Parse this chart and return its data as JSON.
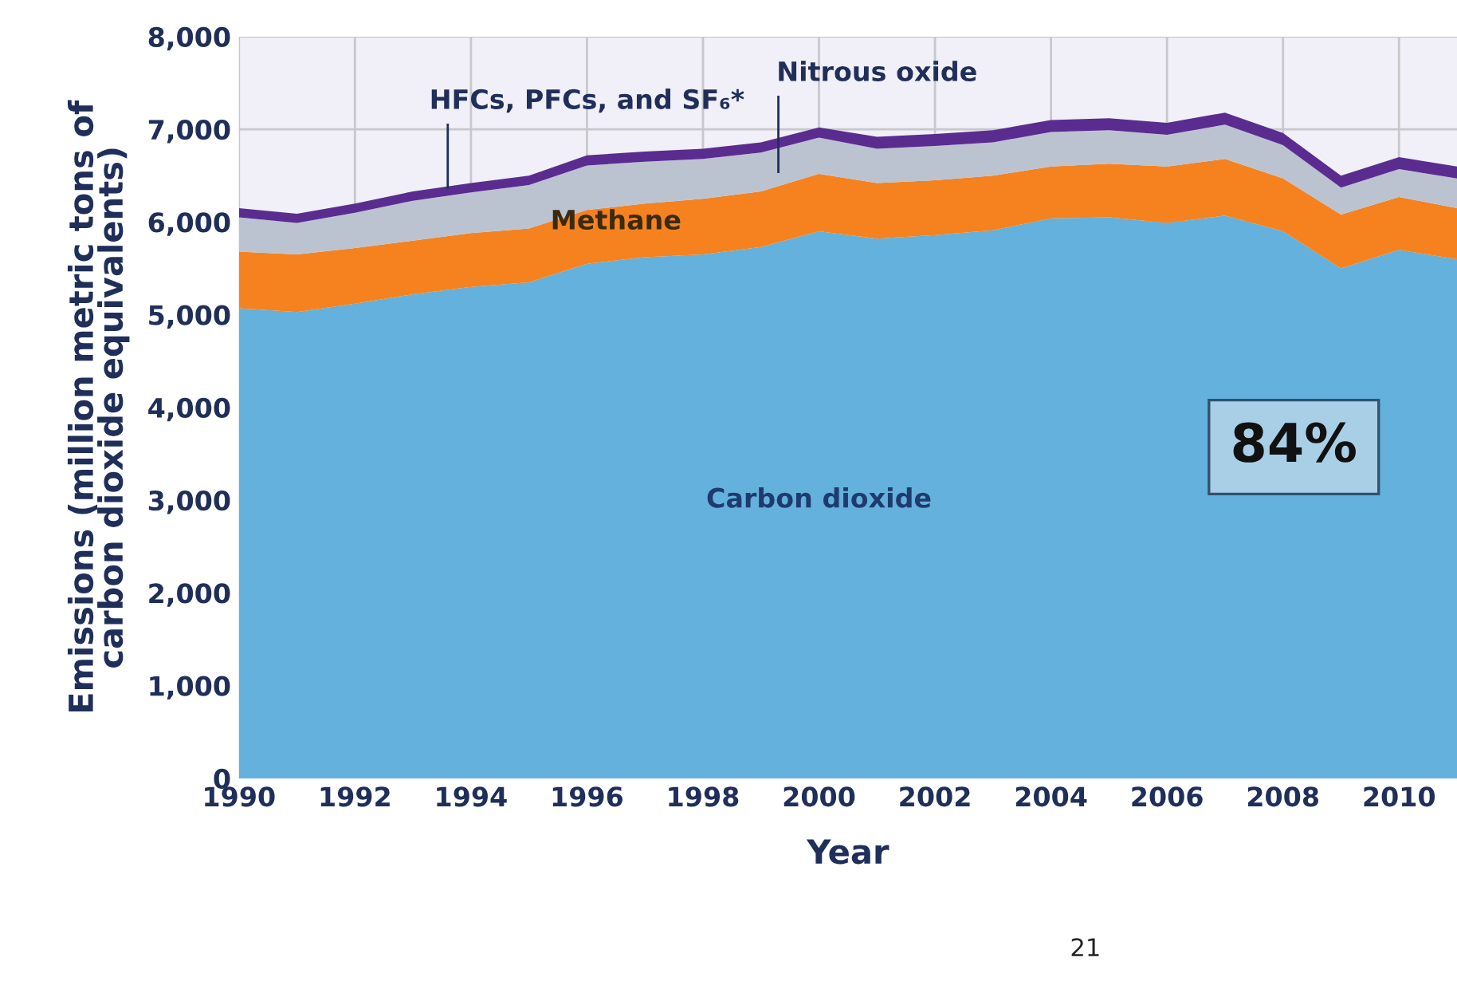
{
  "chart_data": {
    "type": "area",
    "stacked": true,
    "xlabel": "Year",
    "ylabel": "Emissions (million metric tons of\ncarbon dioxide equivalents)",
    "x": [
      1990,
      1991,
      1992,
      1993,
      1994,
      1995,
      1996,
      1997,
      1998,
      1999,
      2000,
      2001,
      2002,
      2003,
      2004,
      2005,
      2006,
      2007,
      2008,
      2009,
      2010,
      2011
    ],
    "series": [
      {
        "name": "Carbon dioxide",
        "color": "#63b1dc",
        "values": [
          5070,
          5030,
          5120,
          5220,
          5300,
          5350,
          5550,
          5620,
          5650,
          5730,
          5900,
          5820,
          5860,
          5910,
          6040,
          6050,
          5990,
          6070,
          5900,
          5500,
          5700,
          5600
        ]
      },
      {
        "name": "Methane",
        "color": "#f5821f",
        "values": [
          610,
          620,
          600,
          580,
          580,
          580,
          580,
          580,
          600,
          600,
          620,
          600,
          590,
          590,
          560,
          580,
          610,
          610,
          570,
          580,
          570,
          550
        ]
      },
      {
        "name": "Nitrous oxide",
        "color": "#bcc3d0",
        "values": [
          370,
          340,
          380,
          430,
          440,
          470,
          480,
          450,
          430,
          420,
          390,
          370,
          370,
          360,
          370,
          360,
          340,
          370,
          360,
          290,
          300,
          320
        ]
      },
      {
        "name": "HFCs, PFCs, and SF₆*",
        "color": "#5b2c8f",
        "values": [
          100,
          100,
          100,
          100,
          100,
          100,
          110,
          110,
          110,
          110,
          110,
          130,
          130,
          130,
          130,
          130,
          130,
          130,
          130,
          130,
          130,
          130
        ]
      }
    ],
    "xlim": [
      1990,
      2011
    ],
    "ylim": [
      0,
      8000
    ],
    "xticks": [
      1990,
      1992,
      1994,
      1996,
      1998,
      2000,
      2002,
      2004,
      2006,
      2008,
      2010
    ],
    "yticks": [
      {
        "value": 0,
        "label": "0"
      },
      {
        "value": 1000,
        "label": "1,000"
      },
      {
        "value": 2000,
        "label": "2,000"
      },
      {
        "value": 3000,
        "label": "3,000"
      },
      {
        "value": 4000,
        "label": "4,000"
      },
      {
        "value": 5000,
        "label": "5,000"
      },
      {
        "value": 6000,
        "label": "6,000"
      },
      {
        "value": 7000,
        "label": "7,000"
      },
      {
        "value": 8000,
        "label": "8,000"
      }
    ],
    "grid": true,
    "legend": false,
    "annotations": [
      "84%",
      "21"
    ]
  }
}
